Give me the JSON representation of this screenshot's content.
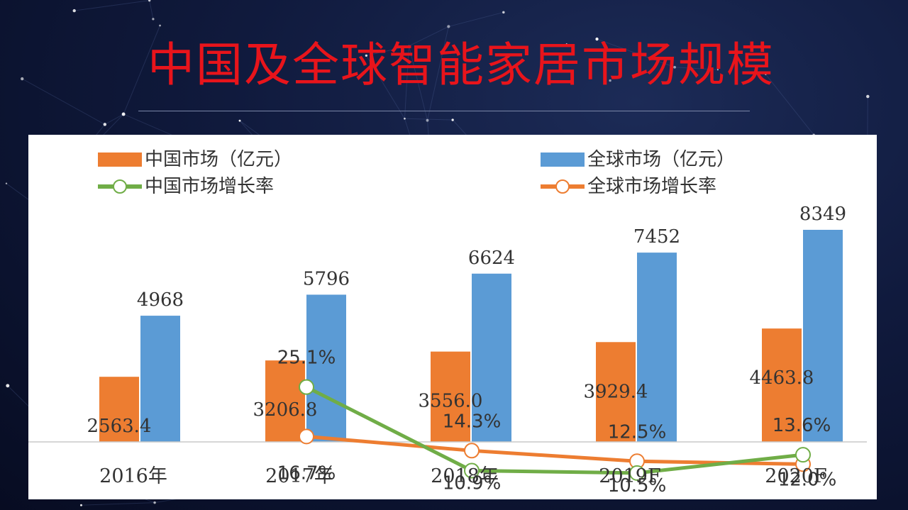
{
  "slide": {
    "title": "中国及全球智能家居市场规模"
  },
  "colors": {
    "china_bar": "#ed7d31",
    "global_bar": "#5b9bd5",
    "china_rate": "#70ad47",
    "global_rate": "#ed7d31",
    "title": "#e8141b"
  },
  "legend": {
    "china_market": "中国市场（亿元）",
    "global_market": "全球市场（亿元）",
    "china_rate": "中国市场增长率",
    "global_rate": "全球市场增长率"
  },
  "chart_data": {
    "type": "bar",
    "categories": [
      "2016年",
      "2017年",
      "2018年",
      "2019F",
      "2020F"
    ],
    "series": [
      {
        "name": "中国市场（亿元）",
        "type": "bar",
        "values": [
          2563.4,
          3206.8,
          3556.0,
          3929.4,
          4463.8
        ],
        "labels": [
          "2563.4",
          "3206.8",
          "3556.0",
          "3929.4",
          "4463.8"
        ]
      },
      {
        "name": "全球市场（亿元）",
        "type": "bar",
        "values": [
          4968,
          5796,
          6624,
          7452,
          8349
        ],
        "labels": [
          "4968",
          "5796",
          "6624",
          "7452",
          "8349"
        ]
      },
      {
        "name": "中国市场增长率",
        "type": "line",
        "values": [
          null,
          25.1,
          10.9,
          10.5,
          13.6
        ],
        "labels": [
          "",
          "25.1%",
          "10.9%",
          "10.5%",
          "13.6%"
        ]
      },
      {
        "name": "全球市场增长率",
        "type": "line",
        "values": [
          null,
          16.7,
          14.3,
          12.5,
          12.0
        ],
        "labels": [
          "",
          "16.7%",
          "14.3%",
          "12.5%",
          "12.0%"
        ]
      }
    ],
    "grid": false,
    "legend_position": "top"
  }
}
